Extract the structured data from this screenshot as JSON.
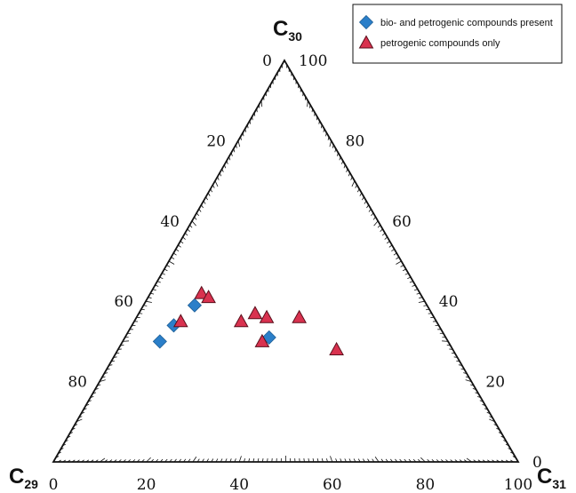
{
  "chart_data": {
    "type": "scatter",
    "subtype": "ternary",
    "corners": {
      "top": {
        "main": "C",
        "sub": "30"
      },
      "left": {
        "main": "C",
        "sub": "29"
      },
      "right": {
        "main": "C",
        "sub": "31"
      }
    },
    "axis_range": [
      0,
      100
    ],
    "tick_labels": {
      "c30_side": [
        "0",
        "20",
        "40",
        "60",
        "80"
      ],
      "c31_side": [
        "100",
        "80",
        "60",
        "40",
        "20",
        "0"
      ],
      "c29_side": [
        "0",
        "20",
        "40",
        "60",
        "80",
        "100"
      ]
    },
    "legend": {
      "placement": "top-right",
      "entries": [
        {
          "label": "bio- and petrogenic compounds present",
          "marker": "diamond",
          "color": "#2b7fc9"
        },
        {
          "label": "petrogenic compounds only",
          "marker": "triangle",
          "color": "#d9324f"
        }
      ]
    },
    "series": [
      {
        "name": "bio- and petrogenic compounds present",
        "marker": "diamond",
        "color": "#2b7fc9",
        "points": [
          {
            "c29": 62,
            "c30": 30,
            "c31": 8
          },
          {
            "c29": 57,
            "c30": 34,
            "c31": 9
          },
          {
            "c29": 50,
            "c30": 39,
            "c31": 11
          },
          {
            "c29": 38,
            "c30": 31,
            "c31": 31
          }
        ]
      },
      {
        "name": "petrogenic compounds only",
        "marker": "triangle",
        "color": "#d9324f",
        "points": [
          {
            "c29": 47,
            "c30": 42,
            "c31": 11
          },
          {
            "c29": 46,
            "c30": 41,
            "c31": 13
          },
          {
            "c29": 38,
            "c30": 37,
            "c31": 25
          },
          {
            "c29": 36,
            "c30": 36,
            "c31": 28
          },
          {
            "c29": 55,
            "c30": 35,
            "c31": 10
          },
          {
            "c29": 42,
            "c30": 35,
            "c31": 23
          },
          {
            "c29": 40,
            "c30": 30,
            "c31": 30
          },
          {
            "c29": 29,
            "c30": 36,
            "c31": 35
          },
          {
            "c29": 25,
            "c30": 28,
            "c31": 47
          }
        ]
      }
    ],
    "grid": false
  }
}
